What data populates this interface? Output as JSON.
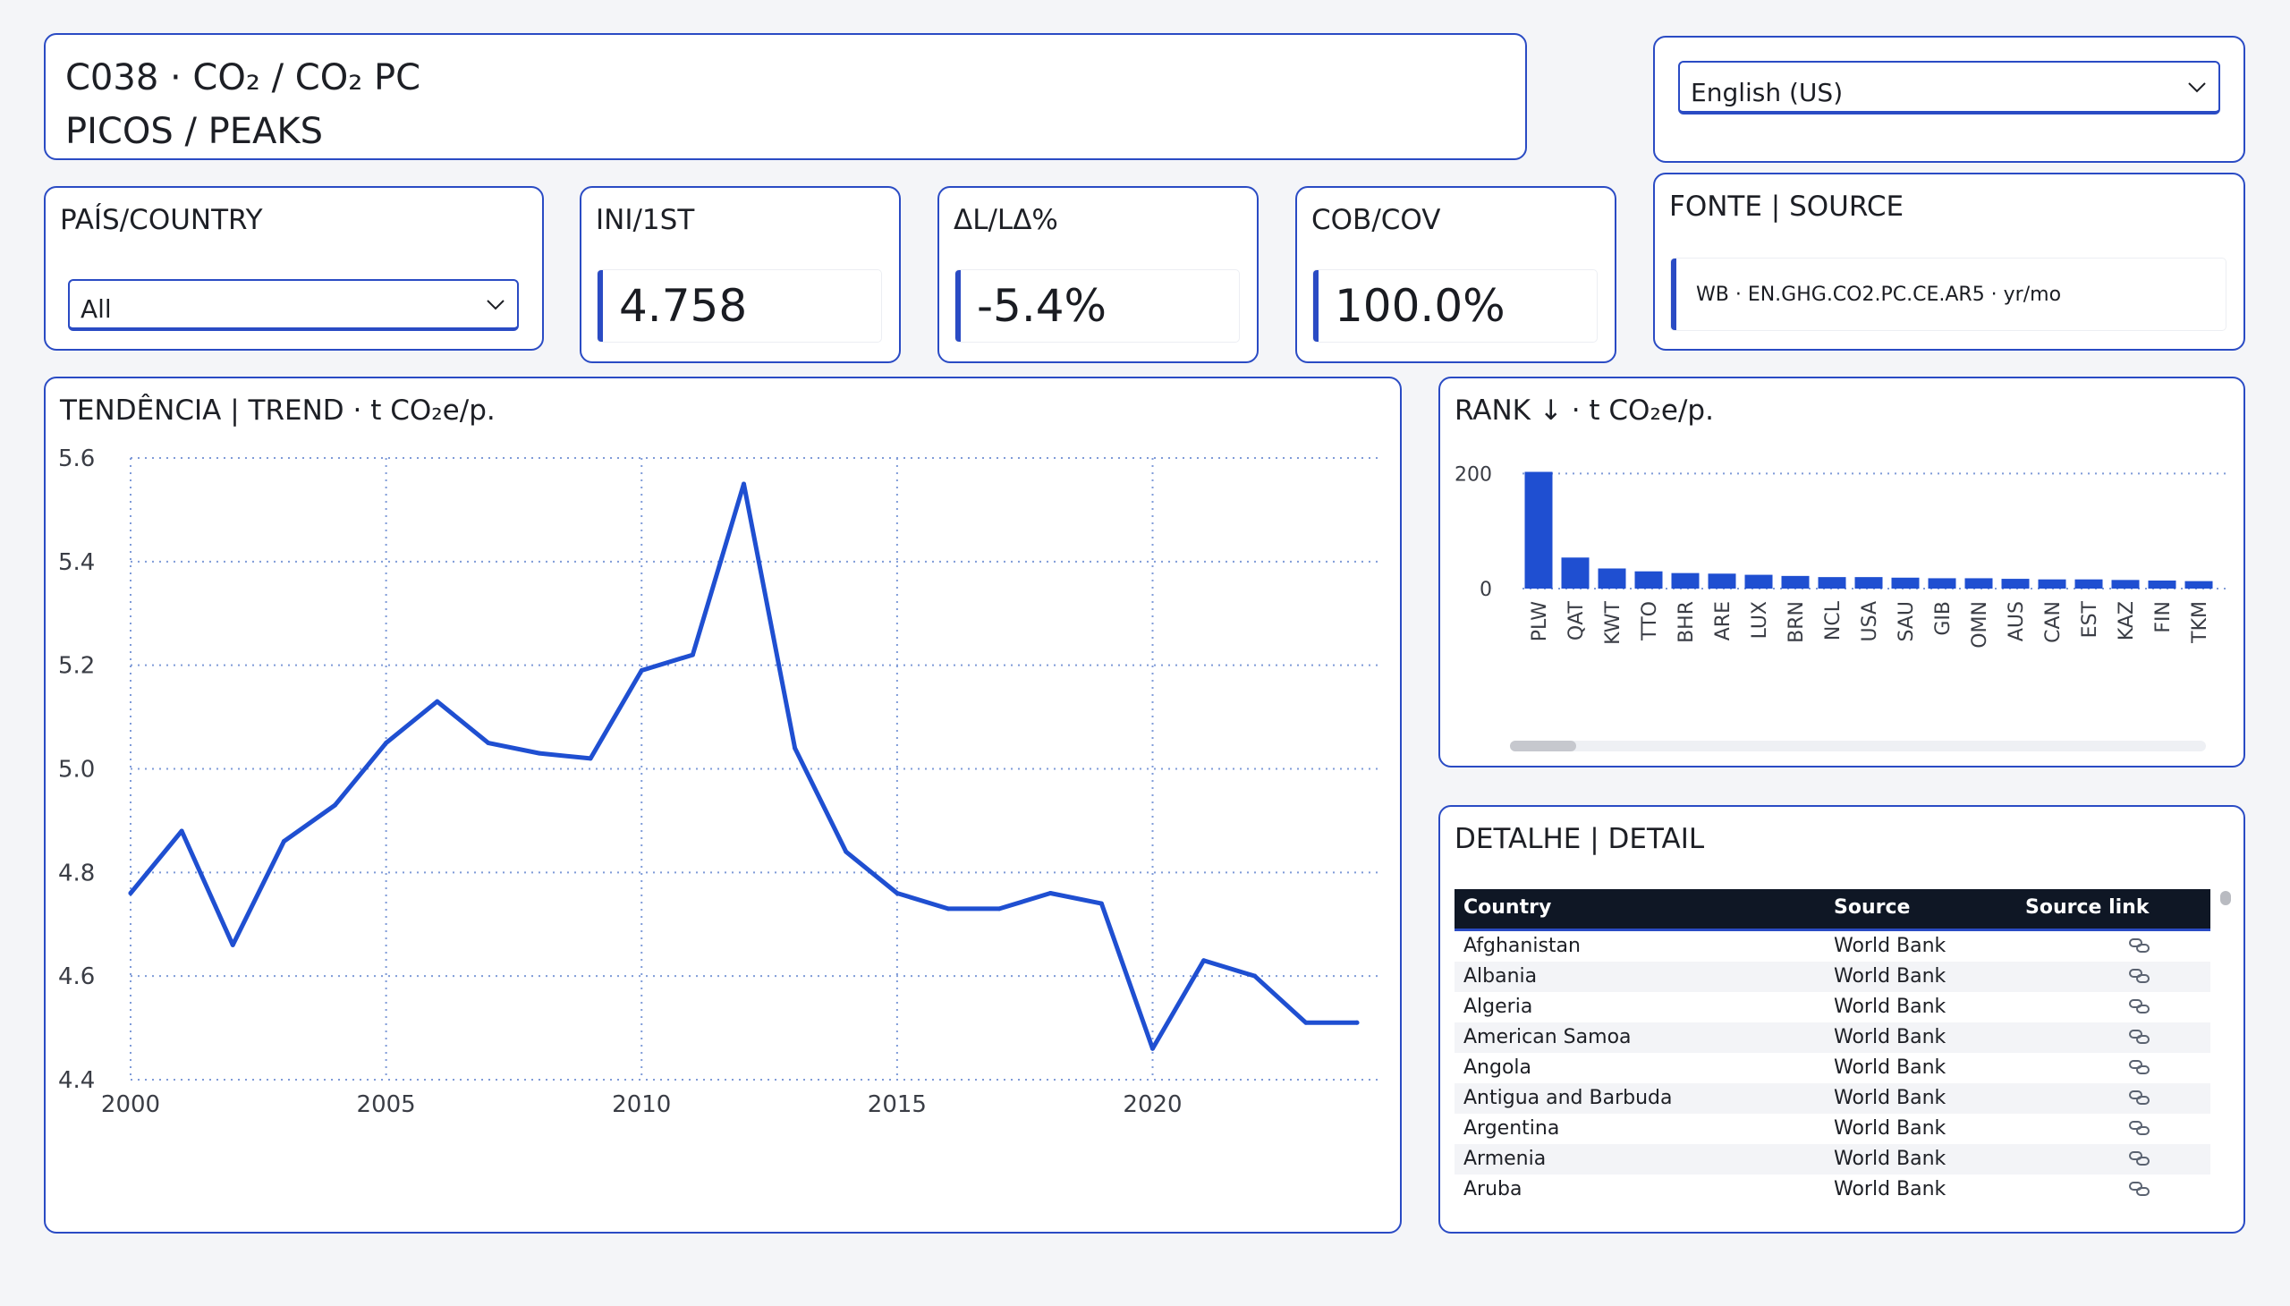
{
  "header": {
    "line1": "C038 · CO₂ / CO₂ PC",
    "line2": "PICOS / PEAKS"
  },
  "language_select": {
    "value": "English (US)"
  },
  "country_filter": {
    "label": "PAÍS/COUNTRY",
    "value": "All"
  },
  "kpis": [
    {
      "label": "INI/1ST",
      "value": "4.758"
    },
    {
      "label": "ΔL/LΔ%",
      "value": "-5.4%"
    },
    {
      "label": "COB/COV",
      "value": "100.0%"
    }
  ],
  "source_card": {
    "label": "FONTE | SOURCE",
    "text": "WB · EN.GHG.CO2.PC.CE.AR5 · yr/mo"
  },
  "accent_color": "#2a4bc4",
  "chart_data": [
    {
      "type": "line",
      "title": "TENDÊNCIA | TREND · t CO₂e/p.",
      "x": [
        2000,
        2001,
        2002,
        2003,
        2004,
        2005,
        2006,
        2007,
        2008,
        2009,
        2010,
        2011,
        2012,
        2013,
        2014,
        2015,
        2016,
        2017,
        2018,
        2019,
        2020,
        2021,
        2022,
        2023,
        2024
      ],
      "series": [
        {
          "values": [
            4.76,
            4.88,
            4.66,
            4.86,
            4.93,
            5.05,
            5.13,
            5.05,
            5.03,
            5.02,
            5.19,
            5.22,
            5.55,
            5.04,
            4.84,
            4.76,
            4.73,
            4.73,
            4.76,
            4.74,
            4.46,
            4.63,
            4.6,
            4.51,
            4.51
          ]
        }
      ],
      "ylim": [
        4.4,
        5.6
      ],
      "yticks": [
        "4.4",
        "4.6",
        "4.8",
        "5.0",
        "5.2",
        "5.4",
        "5.6"
      ],
      "xticks": [
        "2000",
        "2005",
        "2010",
        "2015",
        "2020"
      ],
      "color": "#1f4fd1",
      "grid": true
    },
    {
      "type": "bar",
      "title": "RANK ↓ · t CO₂e/p.",
      "categories": [
        "PLW",
        "QAT",
        "KWT",
        "TTO",
        "BHR",
        "ARE",
        "LUX",
        "BRN",
        "NCL",
        "USA",
        "SAU",
        "GIB",
        "OMN",
        "AUS",
        "CAN",
        "EST",
        "KAZ",
        "FIN",
        "TKM"
      ],
      "values": [
        203,
        54,
        35,
        30,
        27,
        26,
        24,
        22,
        20,
        20,
        19,
        18,
        18,
        17,
        16,
        16,
        15,
        14,
        13
      ],
      "yticks": [
        "0",
        "200"
      ],
      "ylim": [
        0,
        210
      ],
      "color": "#1f4fd1",
      "grid": true
    }
  ],
  "detail": {
    "title": "DETALHE | DETAIL",
    "columns": [
      "Country",
      "Source",
      "Source link"
    ],
    "rows": [
      [
        "Afghanistan",
        "World Bank"
      ],
      [
        "Albania",
        "World Bank"
      ],
      [
        "Algeria",
        "World Bank"
      ],
      [
        "American Samoa",
        "World Bank"
      ],
      [
        "Angola",
        "World Bank"
      ],
      [
        "Antigua and Barbuda",
        "World Bank"
      ],
      [
        "Argentina",
        "World Bank"
      ],
      [
        "Armenia",
        "World Bank"
      ],
      [
        "Aruba",
        "World Bank"
      ]
    ]
  }
}
